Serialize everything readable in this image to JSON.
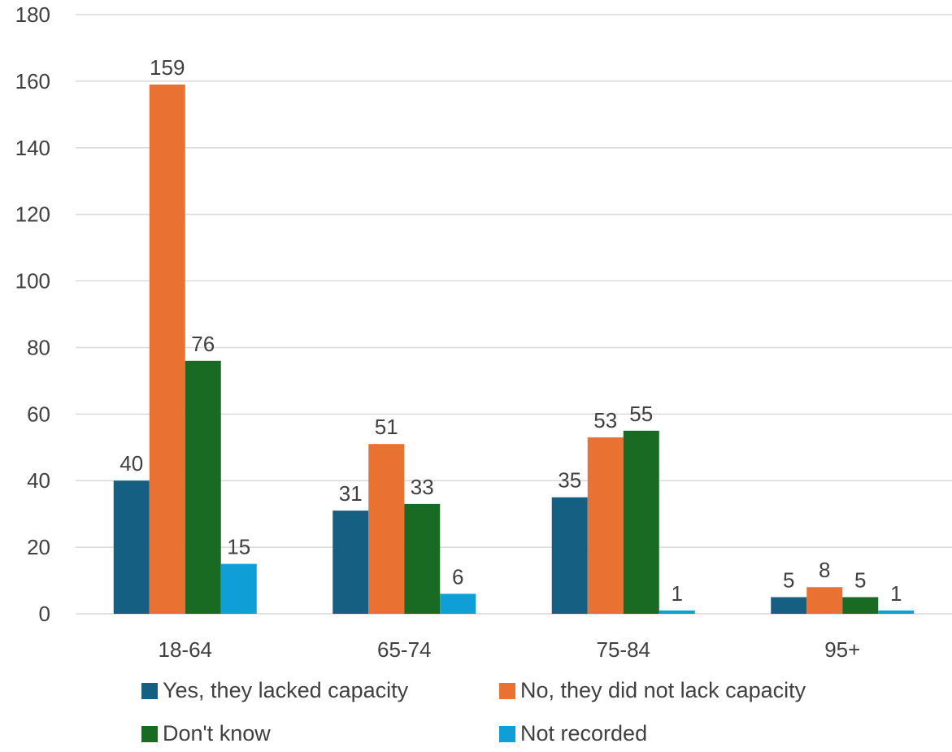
{
  "chart_data": {
    "type": "bar",
    "title": "",
    "xlabel": "",
    "ylabel": "",
    "categories": [
      "18-64",
      "65-74",
      "75-84",
      "95+"
    ],
    "ylim": [
      0,
      180
    ],
    "yticks": [
      0,
      20,
      40,
      60,
      80,
      100,
      120,
      140,
      160,
      180
    ],
    "grid": true,
    "legend_position": "bottom",
    "data_labels": true,
    "series": [
      {
        "name": "Yes, they lacked capacity",
        "color": "#156082",
        "values": [
          40,
          31,
          35,
          5
        ]
      },
      {
        "name": "No, they did not lack capacity",
        "color": "#E97132",
        "values": [
          159,
          51,
          53,
          8
        ]
      },
      {
        "name": "Don't know",
        "color": "#196B24",
        "values": [
          76,
          33,
          55,
          5
        ]
      },
      {
        "name": "Not recorded",
        "color": "#0F9ED5",
        "values": [
          15,
          6,
          1,
          1
        ]
      }
    ]
  }
}
